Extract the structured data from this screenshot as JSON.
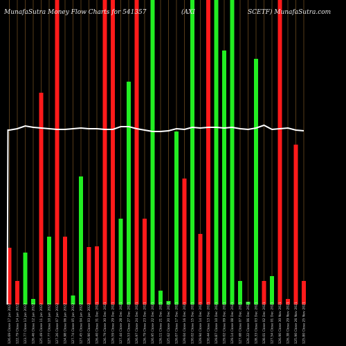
{
  "header": {
    "left": "MunafaSutra  Money Flow  Charts for 541357",
    "middle": "(AXI",
    "right": "SCETF) MunafaSutra.com"
  },
  "chart_data": {
    "type": "bar",
    "title": "",
    "xlabel": "",
    "ylabel": "",
    "ylim": [
      0,
      440
    ],
    "grid": true,
    "categories": [
      "126.69 Close 17 Jan 2022",
      "122.79 Close 14 Jan 2022",
      "123.77 Close 13 Jan 2022",
      "126.46 Close 12 Jan 2022",
      "125.49 Close 11 Jan 2022",
      "127.77 Close 10 Jan 2022",
      "127.26 Close 07 Jan 2022",
      "124.98 Close 06 Jan 2022",
      "127.74 Close 05 Jan 2022",
      "127.45 Close 04 Jan 2022",
      "126.90 Close 03 Jan 2022",
      "126.40 Close 31 Dec 2021",
      "126.79 Close 30 Dec 2021",
      "126.59 Close 29 Dec 2021",
      "127.44 Close 28 Dec 2021",
      "126.53 Close 27 Dec 2021",
      "126.97 Close 24 Dec 2021",
      "126.79 Close 23 Dec 2021",
      "126.95 Close 22 Dec 2021",
      "126.11 Close 21 Dec 2021",
      "125.62 Close 20 Dec 2021",
      "126.07 Close 17 Dec 2021",
      "129.04 Close 16 Dec 2021",
      "130.02 Close 15 Dec 2021",
      "129.94 Close 14 Dec 2021",
      "130.44 Close 13 Dec 2021",
      "129.87 Close 10 Dec 2021",
      "129.02 Close 09 Dec 2021",
      "129.14 Close 08 Dec 2021",
      "127.68 Close 07 Dec 2021",
      "126.22 Close 06 Dec 2021",
      "128.33 Close 03 Dec 2021",
      "128.01 Close 02 Dec 2021",
      "127.54 Close 01 Dec 2021",
      "126.90 Close 30 Nov 2021",
      "126.38 Close 29 Nov 2021",
      "125.90 Close 26 Nov 2021",
      "125.80 Close 25 Nov 2021"
    ],
    "values": [
      82,
      34,
      75,
      8,
      306,
      98,
      440,
      98,
      13,
      185,
      83,
      84,
      440,
      440,
      124,
      322,
      440,
      124,
      440,
      20,
      5,
      250,
      182,
      440,
      102,
      440,
      440,
      367,
      440,
      34,
      4,
      355,
      34,
      41,
      440,
      8,
      231,
      34
    ],
    "directions": [
      "down",
      "down",
      "up",
      "up",
      "down",
      "up",
      "down",
      "down",
      "up",
      "up",
      "down",
      "down",
      "down",
      "down",
      "up",
      "up",
      "down",
      "down",
      "up",
      "up",
      "up",
      "up",
      "down",
      "up",
      "down",
      "down",
      "up",
      "up",
      "up",
      "up",
      "up",
      "up",
      "down",
      "up",
      "down",
      "down",
      "down",
      "down"
    ],
    "line": [
      252,
      254,
      258,
      256,
      255,
      254,
      253,
      253,
      254,
      255,
      254,
      254,
      253,
      253,
      257,
      257,
      254,
      252,
      250,
      250,
      251,
      254,
      253,
      256,
      255,
      256,
      256,
      255,
      256,
      254,
      253,
      255,
      259,
      253,
      254,
      255,
      252,
      251
    ],
    "colors": {
      "up": "#22ee22",
      "down": "#ff1a1a",
      "line": "#ffffff",
      "grid": "#6b4a1e"
    }
  }
}
